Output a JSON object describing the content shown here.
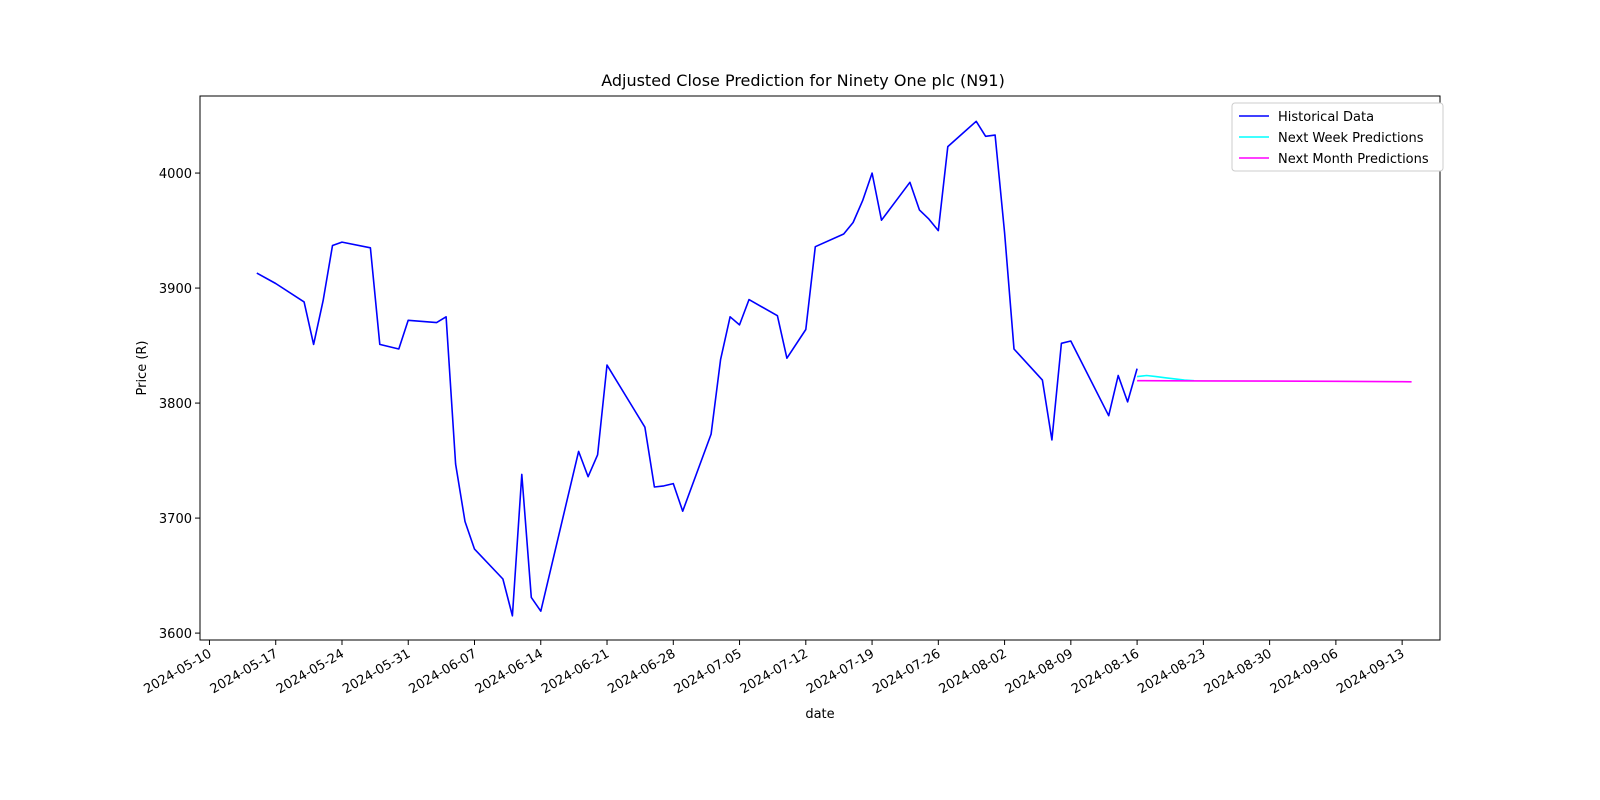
{
  "chart_data": {
    "type": "line",
    "title": "Adjusted Close Prediction for Ninety One plc (N91)",
    "xlabel": "date",
    "ylabel": "Price (R)",
    "xlim": [
      "2024-05-09",
      "2024-09-17"
    ],
    "ylim": [
      3594,
      4067
    ],
    "xticks": [
      "2024-05-10",
      "2024-05-17",
      "2024-05-24",
      "2024-05-31",
      "2024-06-07",
      "2024-06-14",
      "2024-06-21",
      "2024-06-28",
      "2024-07-05",
      "2024-07-12",
      "2024-07-19",
      "2024-07-26",
      "2024-08-02",
      "2024-08-09",
      "2024-08-16",
      "2024-08-23",
      "2024-08-30",
      "2024-09-06",
      "2024-09-13"
    ],
    "yticks": [
      3600,
      3700,
      3800,
      3900,
      4000
    ],
    "grid": false,
    "legend_position": "top-right",
    "series": [
      {
        "name": "Historical Data",
        "color": "#0000ff",
        "points": [
          [
            "2024-05-15",
            3913
          ],
          [
            "2024-05-17",
            3904
          ],
          [
            "2024-05-20",
            3888
          ],
          [
            "2024-05-21",
            3851
          ],
          [
            "2024-05-22",
            3889
          ],
          [
            "2024-05-23",
            3937
          ],
          [
            "2024-05-24",
            3940
          ],
          [
            "2024-05-27",
            3935
          ],
          [
            "2024-05-28",
            3851
          ],
          [
            "2024-05-30",
            3847
          ],
          [
            "2024-05-31",
            3872
          ],
          [
            "2024-06-03",
            3870
          ],
          [
            "2024-06-04",
            3875
          ],
          [
            "2024-06-05",
            3747
          ],
          [
            "2024-06-06",
            3697
          ],
          [
            "2024-06-07",
            3673
          ],
          [
            "2024-06-10",
            3647
          ],
          [
            "2024-06-11",
            3615
          ],
          [
            "2024-06-12",
            3738
          ],
          [
            "2024-06-13",
            3631
          ],
          [
            "2024-06-14",
            3619
          ],
          [
            "2024-06-18",
            3758
          ],
          [
            "2024-06-19",
            3736
          ],
          [
            "2024-06-20",
            3755
          ],
          [
            "2024-06-21",
            3833
          ],
          [
            "2024-06-25",
            3779
          ],
          [
            "2024-06-26",
            3727
          ],
          [
            "2024-06-27",
            3728
          ],
          [
            "2024-06-28",
            3730
          ],
          [
            "2024-06-29",
            3706
          ],
          [
            "2024-07-02",
            3773
          ],
          [
            "2024-07-03",
            3838
          ],
          [
            "2024-07-04",
            3875
          ],
          [
            "2024-07-05",
            3868
          ],
          [
            "2024-07-06",
            3890
          ],
          [
            "2024-07-09",
            3876
          ],
          [
            "2024-07-10",
            3839
          ],
          [
            "2024-07-12",
            3864
          ],
          [
            "2024-07-13",
            3936
          ],
          [
            "2024-07-16",
            3947
          ],
          [
            "2024-07-17",
            3957
          ],
          [
            "2024-07-18",
            3976
          ],
          [
            "2024-07-19",
            4000
          ],
          [
            "2024-07-20",
            3959
          ],
          [
            "2024-07-23",
            3992
          ],
          [
            "2024-07-24",
            3968
          ],
          [
            "2024-07-25",
            3960
          ],
          [
            "2024-07-26",
            3950
          ],
          [
            "2024-07-27",
            4023
          ],
          [
            "2024-07-30",
            4045
          ],
          [
            "2024-07-31",
            4032
          ],
          [
            "2024-08-01",
            4033
          ],
          [
            "2024-08-02",
            3948
          ],
          [
            "2024-08-03",
            3847
          ],
          [
            "2024-08-06",
            3820
          ],
          [
            "2024-08-07",
            3768
          ],
          [
            "2024-08-08",
            3852
          ],
          [
            "2024-08-09",
            3854
          ],
          [
            "2024-08-13",
            3789
          ],
          [
            "2024-08-14",
            3824
          ],
          [
            "2024-08-15",
            3801
          ],
          [
            "2024-08-16",
            3830
          ]
        ]
      },
      {
        "name": "Next Week Predictions",
        "color": "#00ffff",
        "points": [
          [
            "2024-08-16",
            3823
          ],
          [
            "2024-08-17",
            3824
          ],
          [
            "2024-08-18",
            3823
          ],
          [
            "2024-08-19",
            3822
          ],
          [
            "2024-08-20",
            3821
          ],
          [
            "2024-08-21",
            3820
          ],
          [
            "2024-08-22",
            3819.5
          ]
        ]
      },
      {
        "name": "Next Month Predictions",
        "color": "#ff00ff",
        "points": [
          [
            "2024-08-16",
            3819.5
          ],
          [
            "2024-08-23",
            3819.3
          ],
          [
            "2024-08-30",
            3819.1
          ],
          [
            "2024-09-06",
            3818.9
          ],
          [
            "2024-09-13",
            3818.6
          ],
          [
            "2024-09-14",
            3818.5
          ]
        ]
      }
    ]
  }
}
